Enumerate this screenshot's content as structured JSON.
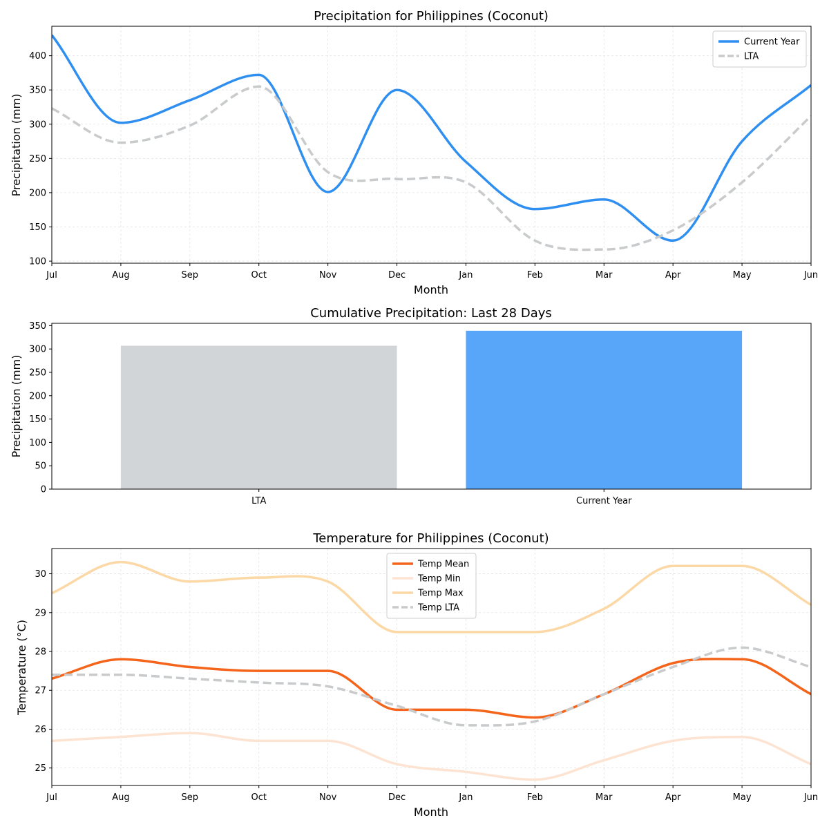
{
  "chart_data": [
    {
      "type": "line",
      "title": "Precipitation for Philippines (Coconut)",
      "xlabel": "Month",
      "ylabel": "Precipitation (mm)",
      "categories": [
        "Jul",
        "Aug",
        "Sep",
        "Oct",
        "Nov",
        "Dec",
        "Jan",
        "Feb",
        "Mar",
        "Apr",
        "May",
        "Jun"
      ],
      "ylim": [
        97,
        443
      ],
      "yticks": [
        100,
        150,
        200,
        250,
        300,
        350,
        400
      ],
      "grid": true,
      "legend_position": "top-right",
      "series": [
        {
          "name": "Current Year",
          "color": "#2e8ff0",
          "dash": "solid",
          "values": [
            430,
            302,
            335,
            372,
            201,
            350,
            245,
            176,
            190,
            130,
            275,
            357
          ]
        },
        {
          "name": "LTA",
          "color": "#c8cacc",
          "dash": "dashed",
          "values": [
            323,
            273,
            298,
            355,
            230,
            220,
            215,
            130,
            117,
            145,
            215,
            312
          ]
        }
      ]
    },
    {
      "type": "bar",
      "title": "Cumulative Precipitation: Last 28 Days",
      "xlabel": "",
      "ylabel": "Precipitation (mm)",
      "categories": [
        "LTA",
        "Current Year"
      ],
      "values": [
        307,
        339
      ],
      "colors": [
        "#d1d5d8",
        "#58a6fa"
      ],
      "ylim": [
        0,
        355
      ],
      "yticks": [
        0,
        50,
        100,
        150,
        200,
        250,
        300,
        350
      ]
    },
    {
      "type": "line",
      "title": "Temperature for Philippines (Coconut)",
      "xlabel": "Month",
      "ylabel": "Temperature (°C)",
      "categories": [
        "Jul",
        "Aug",
        "Sep",
        "Oct",
        "Nov",
        "Dec",
        "Jan",
        "Feb",
        "Mar",
        "Apr",
        "May",
        "Jun"
      ],
      "ylim": [
        24.55,
        30.65
      ],
      "yticks": [
        25,
        26,
        27,
        28,
        29,
        30
      ],
      "grid": true,
      "legend_position": "top-center",
      "series": [
        {
          "name": "Temp Mean",
          "color": "#f4641a",
          "dash": "solid",
          "values": [
            27.3,
            27.8,
            27.6,
            27.5,
            27.5,
            26.5,
            26.5,
            26.3,
            26.9,
            27.7,
            27.8,
            26.9
          ]
        },
        {
          "name": "Temp Min",
          "color": "#fde3d1",
          "dash": "solid",
          "values": [
            25.7,
            25.8,
            25.9,
            25.7,
            25.7,
            25.1,
            24.9,
            24.7,
            25.2,
            25.7,
            25.8,
            25.1
          ]
        },
        {
          "name": "Temp Max",
          "color": "#fbd8a6",
          "dash": "solid",
          "values": [
            29.5,
            30.3,
            29.8,
            29.9,
            29.8,
            28.5,
            28.5,
            28.5,
            29.1,
            30.2,
            30.2,
            29.2
          ]
        },
        {
          "name": "Temp LTA",
          "color": "#c8cacc",
          "dash": "dashed",
          "values": [
            27.4,
            27.4,
            27.3,
            27.2,
            27.1,
            26.6,
            26.1,
            26.2,
            26.9,
            27.6,
            28.1,
            27.6
          ]
        }
      ]
    }
  ]
}
